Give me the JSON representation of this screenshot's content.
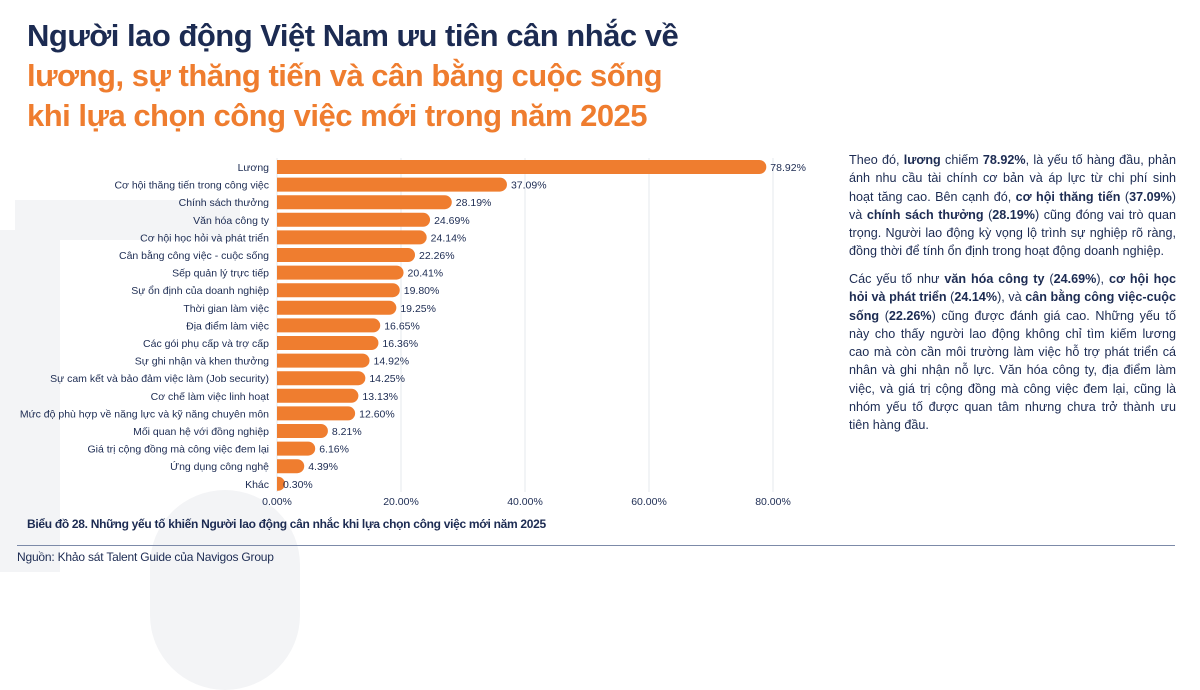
{
  "title": {
    "line1": "Người lao động Việt Nam ưu tiên cân nhắc về",
    "line2": "lương, sự thăng tiến và cân bằng cuộc sống",
    "line3": "khi lựa chọn công việc mới trong năm 2025"
  },
  "colors": {
    "navy": "#1c2b52",
    "accent": "#ef7d2f",
    "grid": "#e6e8ec"
  },
  "chart_data": {
    "type": "bar",
    "orientation": "horizontal",
    "categories": [
      "Lương",
      "Cơ hội thăng tiến trong công việc",
      "Chính sách thưởng",
      "Văn hóa công ty",
      "Cơ hội học hỏi và phát triển",
      "Cân bằng công việc - cuộc sống",
      "Sếp quản lý trực tiếp",
      "Sự ổn định của doanh nghiệp",
      "Thời gian làm việc",
      "Địa điểm làm việc",
      "Các gói phụ cấp và trợ cấp",
      "Sự ghi nhận và khen thưởng",
      "Sự cam kết và bảo đảm việc làm (Job security)",
      "Cơ chế làm việc linh hoạt",
      "Mức độ phù hợp về năng lực và kỹ năng chuyên môn",
      "Mối quan hệ với đồng nghiệp",
      "Giá trị cộng đồng mà công việc đem lại",
      "Ứng dụng công nghệ",
      "Khác"
    ],
    "values": [
      78.92,
      37.09,
      28.19,
      24.69,
      24.14,
      22.26,
      20.41,
      19.8,
      19.25,
      16.65,
      16.36,
      14.92,
      14.25,
      13.13,
      12.6,
      8.21,
      6.16,
      4.39,
      0.3
    ],
    "data_labels": [
      "78.92%",
      "37.09%",
      "28.19%",
      "24.69%",
      "24.14%",
      "22.26%",
      "20.41%",
      "19.80%",
      "19.25%",
      "16.65%",
      "16.36%",
      "14.92%",
      "14.25%",
      "13.13%",
      "12.60%",
      "8.21%",
      "6.16%",
      "4.39%",
      "0.30%"
    ],
    "xticks": [
      "0.00%",
      "20.00%",
      "40.00%",
      "60.00%",
      "80.00%"
    ],
    "xtick_values": [
      0,
      20,
      40,
      60,
      80
    ],
    "xlim": [
      0,
      85
    ],
    "grid": true,
    "title": "",
    "xlabel": "",
    "ylabel": ""
  },
  "paragraphs": [
    [
      {
        "t": "Theo đó, ",
        "b": false
      },
      {
        "t": "lương",
        "b": true
      },
      {
        "t": " chiếm ",
        "b": false
      },
      {
        "t": "78.92%",
        "b": true
      },
      {
        "t": ", là yếu tố hàng đầu, phản ánh nhu cầu tài chính cơ bản và áp lực từ chi phí sinh hoạt tăng cao. Bên cạnh đó, ",
        "b": false
      },
      {
        "t": "cơ hội thăng tiến",
        "b": true
      },
      {
        "t": " (",
        "b": false
      },
      {
        "t": "37.09%",
        "b": true
      },
      {
        "t": ") và ",
        "b": false
      },
      {
        "t": "chính sách thưởng",
        "b": true
      },
      {
        "t": " (",
        "b": false
      },
      {
        "t": "28.19%",
        "b": true
      },
      {
        "t": ") cũng đóng vai trò quan trọng. Người lao động kỳ vọng lộ trình sự nghiệp rõ ràng, đồng thời để tính ổn định trong hoạt động doanh nghiệp.",
        "b": false
      }
    ],
    [
      {
        "t": "Các yếu tố như ",
        "b": false
      },
      {
        "t": "văn hóa công ty",
        "b": true
      },
      {
        "t": " (",
        "b": false
      },
      {
        "t": "24.69%",
        "b": true
      },
      {
        "t": "), ",
        "b": false
      },
      {
        "t": "cơ hội học hỏi và phát triển",
        "b": true
      },
      {
        "t": " (",
        "b": false
      },
      {
        "t": "24.14%",
        "b": true
      },
      {
        "t": "), và ",
        "b": false
      },
      {
        "t": "cân bằng công việc-cuộc sống",
        "b": true
      },
      {
        "t": " (",
        "b": false
      },
      {
        "t": "22.26%",
        "b": true
      },
      {
        "t": ") cũng được đánh giá cao. Những yếu tố này cho thấy người lao động không chỉ tìm kiếm lương cao mà còn cần môi trường làm việc hỗ trợ phát triển cá nhân và ghi nhận nỗ lực. Văn hóa công ty, địa điểm làm việc, và giá trị cộng đồng mà công việc đem lại, cũng là nhóm yếu tố được quan tâm nhưng chưa trở thành ưu tiên hàng đầu.",
        "b": false
      }
    ]
  ],
  "caption": "Biểu đồ 28. Những yếu tố khiến Người lao động cân nhắc khi lựa chọn công việc mới năm 2025",
  "source": "Nguồn: Khảo sát Talent Guide của Navigos Group"
}
